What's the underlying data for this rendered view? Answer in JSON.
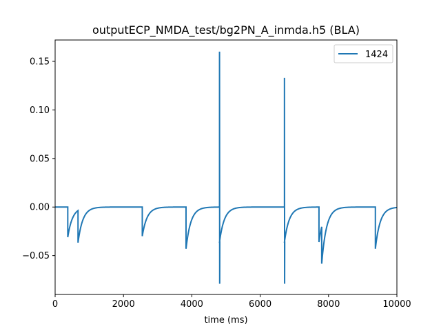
{
  "chart_data": {
    "type": "line",
    "title": "outputECP_NMDA_test/bg2PN_A_inmda.h5 (BLA)",
    "xlabel": "time (ms)",
    "ylabel": "",
    "xlim": [
      0,
      10000
    ],
    "ylim": [
      -0.09,
      0.172
    ],
    "xticks": [
      0,
      2000,
      4000,
      6000,
      8000,
      10000
    ],
    "xtick_labels": [
      "0",
      "2000",
      "4000",
      "6000",
      "8000",
      "10000"
    ],
    "yticks": [
      -0.05,
      0.0,
      0.05,
      0.1,
      0.15
    ],
    "ytick_labels": [
      "−0.05",
      "0.00",
      "0.05",
      "0.10",
      "0.15"
    ],
    "grid": false,
    "legend_position": "top-right",
    "series": [
      {
        "name": "1424",
        "color": "#1f77b4",
        "baseline": 0.0,
        "events": [
          {
            "t": 370,
            "type": "dip",
            "min": -0.031
          },
          {
            "t": 670,
            "type": "dip",
            "min": -0.033
          },
          {
            "t": 2550,
            "type": "dip",
            "min": -0.03
          },
          {
            "t": 3830,
            "type": "dip",
            "min": -0.043
          },
          {
            "t": 4810,
            "type": "spike",
            "max": 0.16,
            "min": -0.079,
            "sub_min": -0.036
          },
          {
            "t": 6710,
            "type": "spike",
            "max": 0.133,
            "min": -0.079,
            "sub_min": -0.036
          },
          {
            "t": 7720,
            "type": "dip",
            "min": -0.036
          },
          {
            "t": 7800,
            "type": "dip",
            "min": -0.038
          },
          {
            "t": 9370,
            "type": "dip",
            "min": -0.043
          }
        ]
      }
    ]
  }
}
